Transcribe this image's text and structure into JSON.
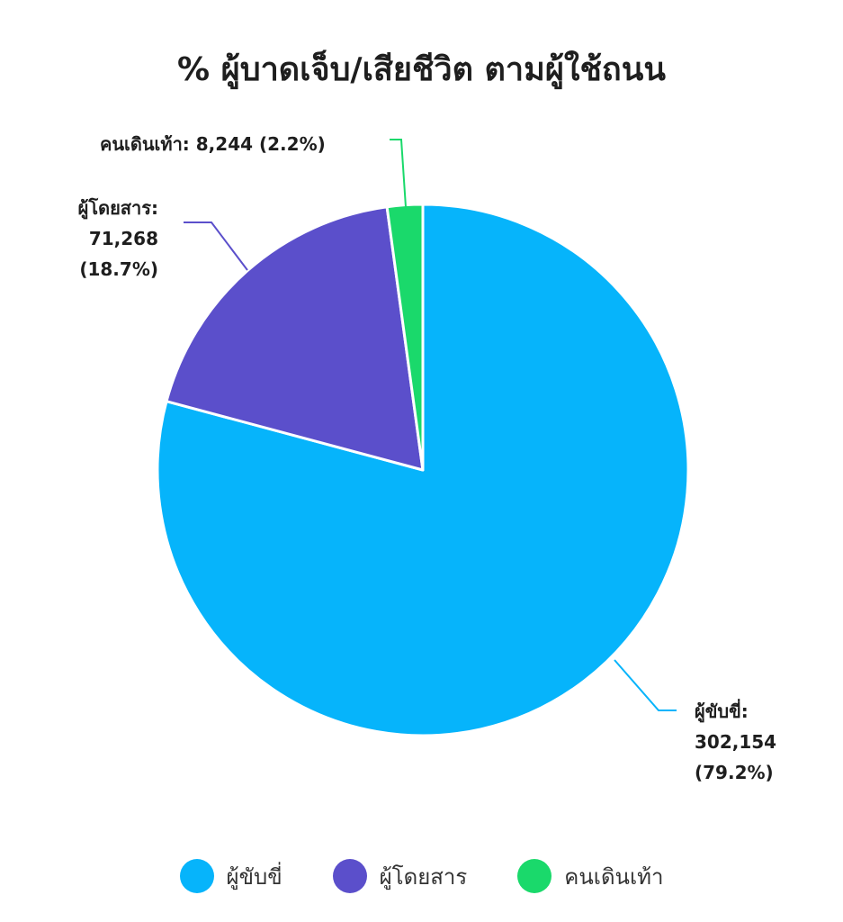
{
  "chart_data": {
    "type": "pie",
    "title": "% ผู้บาดเจ็บ/เสียชีวิต ตามผู้ใช้ถนน",
    "slices": [
      {
        "name": "ผู้ขับขี่",
        "value": 302154,
        "value_label": "302,154",
        "percent_label": "(79.2%)",
        "color": "#06b4fb"
      },
      {
        "name": "ผู้โดยสาร",
        "value": 71268,
        "value_label": "71,268",
        "percent_label": "(18.7%)",
        "color": "#5b4fcb"
      },
      {
        "name": "คนเดินเท้า",
        "value": 8244,
        "value_label": "8,244",
        "percent_label": "(2.2%)",
        "color": "#1ad96b"
      }
    ],
    "data_labels": {
      "driver": {
        "name": "ผู้ขับขี่:",
        "value": "302,154",
        "percent": "(79.2%)"
      },
      "passenger": {
        "name": "ผู้โดยสาร:",
        "value": "71,268",
        "percent": "(18.7%)"
      },
      "pedestrian": {
        "name": "คนเดินเท้า:",
        "value": "8,244",
        "percent": "(2.2%)"
      }
    },
    "legend": {
      "position": "bottom",
      "items": [
        {
          "label": "ผู้ขับขี่",
          "color": "#06b4fb"
        },
        {
          "label": "ผู้โดยสาร",
          "color": "#5b4fcb"
        },
        {
          "label": "คนเดินเท้า",
          "color": "#1ad96b"
        }
      ]
    }
  }
}
